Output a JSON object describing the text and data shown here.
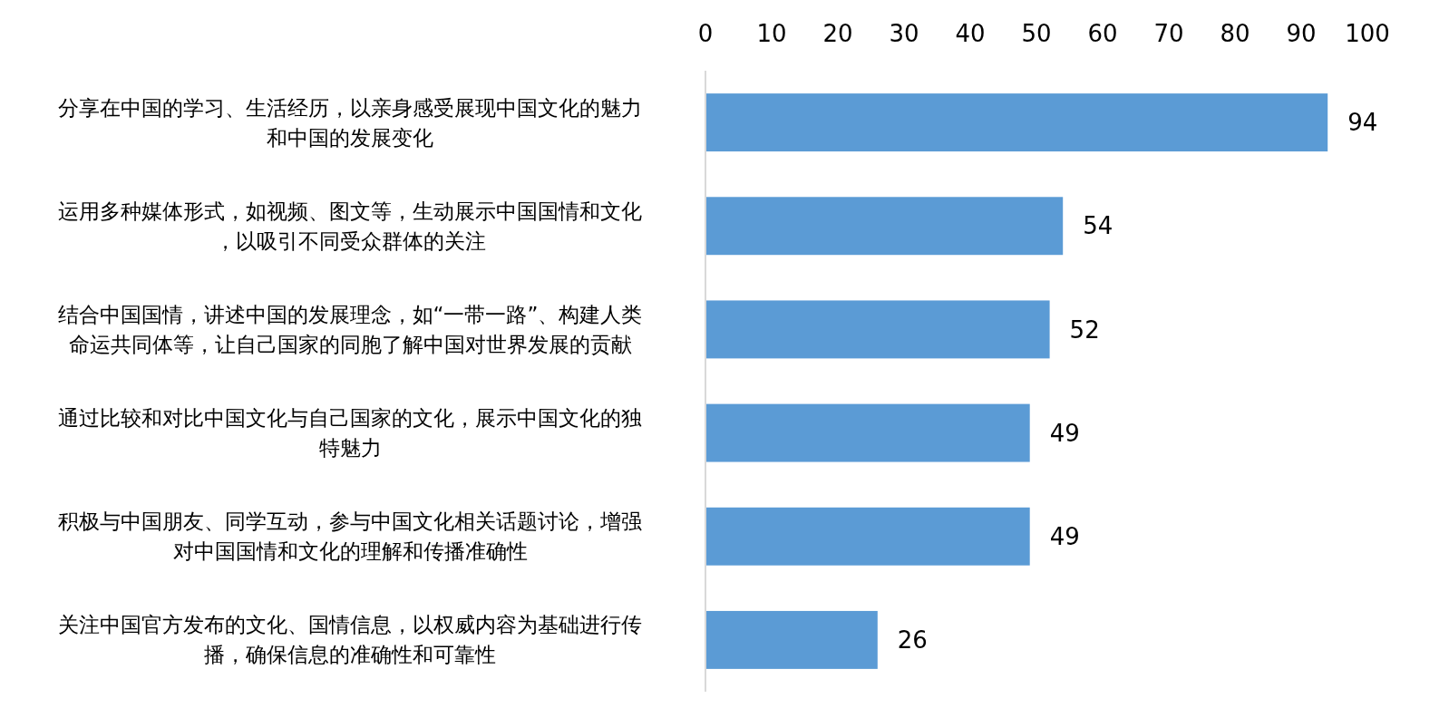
{
  "chart_data": {
    "type": "bar",
    "orientation": "horizontal",
    "categories": [
      "分享在中国的学习、生活经历，以亲身感受展现中国文化的魅力和中国的发展变化",
      "运用多种媒体形式，如视频、图文等，生动展示中国国情和文化，以吸引不同受众群体的关注",
      "结合中国国情，讲述中国的发展理念，如“一带一路”、构建人类命运共同体等，让自己国家的同胞了解中国对世界发展的贡献",
      "通过比较和对比中国文化与自己国家的文化，展示中国文化的独特魅力",
      "积极与中国朋友、同学互动，参与中国文化相关话题讨论，增强对中国国情和文化的理解和传播准确性",
      "关注中国官方发布的文化、国情信息，以权威内容为基础进行传播，确保信息的准确性和可靠性"
    ],
    "values": [
      94,
      54,
      52,
      49,
      49,
      26
    ],
    "color": "#5b9bd5",
    "xlim": [
      0,
      100
    ],
    "xticks": [
      0,
      10,
      20,
      30,
      40,
      50,
      60,
      70,
      80,
      90,
      100
    ],
    "data_labels": true,
    "grid": false
  }
}
